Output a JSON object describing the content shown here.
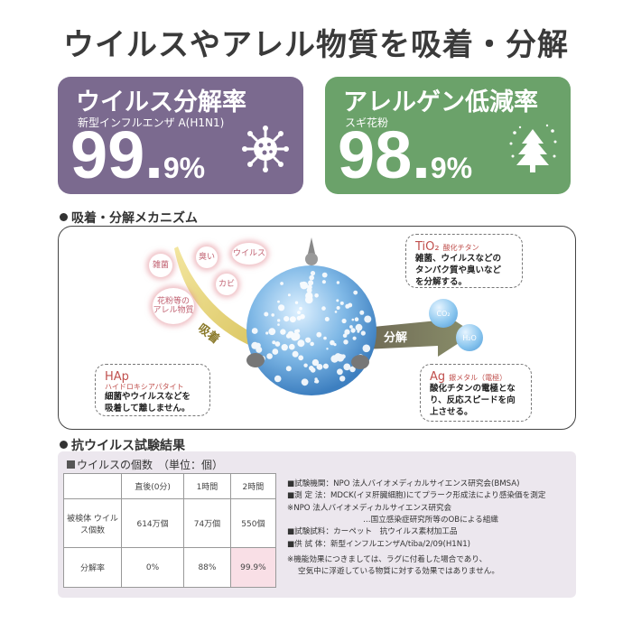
{
  "headline": "ウイルスやアレル物質を吸着・分解",
  "cards": [
    {
      "title": "ウイルス分解率",
      "subtitle": "新型インフルエンザ A(H1N1)",
      "value_int": "99.",
      "value_dec": "9%",
      "icon": "virus-icon",
      "color": "#7b6a8f"
    },
    {
      "title": "アレルゲン低減率",
      "subtitle": "スギ花粉",
      "value_int": "98.",
      "value_dec": "9%",
      "icon": "cedar-tree-icon",
      "color": "#6ba26a"
    }
  ],
  "mechanism": {
    "heading": "吸着・分解メカニズム",
    "tags": [
      "雑菌",
      "臭い",
      "ウイルス",
      "カビ",
      "花粉等の アレル物質"
    ],
    "adsorb_label": "吸着",
    "decompose_label": "分解",
    "molecules": [
      "CO₂",
      "H₂O"
    ],
    "tio2": {
      "title": "TiO₂",
      "sub": "酸化チタン",
      "body": [
        "雑菌、ウイルスなどの",
        "タンパク質や臭いなど",
        "を分解する。"
      ]
    },
    "hap": {
      "title": "HAp",
      "sub": "ハイドロキシアパタイト",
      "body": [
        "細菌やウイルスなどを",
        "吸着して離しません。"
      ]
    },
    "ag": {
      "title": "Ag",
      "sub": "銀メタル（電極）",
      "body": [
        "酸化チタンの電極とな",
        "り、反応スピードを向",
        "上させる。"
      ]
    }
  },
  "test": {
    "heading": "抗ウイルス試験結果",
    "count_title": "ウイルスの個数　（単位：個）",
    "columns": [
      "直後(0分)",
      "1時間",
      "2時間"
    ],
    "row1_label": "被検体 ウイルス個数",
    "row1": [
      "614万個",
      "74万個",
      "550個"
    ],
    "row2_label": "分解率",
    "row2": [
      "0%",
      "88%",
      "99.9%"
    ],
    "notes": [
      "■試験機関：NPO 法人バイオメディカルサイエンス研究会(BMSA)",
      "■測 定 法：MDCK(イヌ肝臓細胞)にてプラーク形成法により感染価を測定",
      "※NPO 法人バイオメディカルサイエンス研究会",
      "…国立感染症研究所等のOBによる組織",
      "■試験試料：カーペット　抗ウイルス素材加工品",
      "■供 試 体：新型インフルエンザA/tiba/2/09(H1N1)"
    ],
    "footnote": [
      "※機能効果につきましては、ラグに付着した場合であり、",
      "空気中に浮遊している物質に対する効果ではありません。"
    ]
  }
}
